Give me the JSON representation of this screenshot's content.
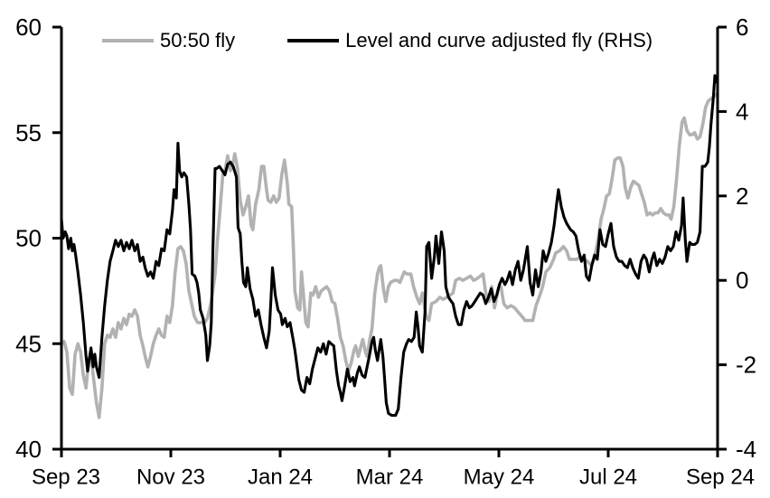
{
  "chart_data": {
    "type": "line",
    "title": "",
    "background_color": "#ffffff",
    "axis_color": "#000000",
    "grid": false,
    "legend_position": "top-inside",
    "x_axis": {
      "unit": "months since Sep 2023",
      "range_months": [
        0,
        12
      ],
      "tick_positions_months": [
        0,
        2,
        4,
        6,
        8,
        10,
        12
      ],
      "tick_labels": [
        "Sep 23",
        "Nov 23",
        "Jan 24",
        "Mar 24",
        "May 24",
        "Jul 24",
        "Sep 24"
      ]
    },
    "y_axis_left": {
      "range": [
        40,
        60
      ],
      "ticks": [
        40,
        45,
        50,
        55,
        60
      ],
      "tick_labels": [
        "40",
        "45",
        "50",
        "55",
        "60"
      ]
    },
    "y_axis_right": {
      "range": [
        -4,
        6
      ],
      "ticks": [
        -4,
        -2,
        0,
        2,
        4,
        6
      ],
      "tick_labels": [
        "-4",
        "-2",
        "0",
        "2",
        "4",
        "6"
      ]
    },
    "series": [
      {
        "name": "50:50 fly",
        "axis": "left",
        "color": "#b2b2b2",
        "stroke_width": 3.6,
        "x": [
          0,
          0.05,
          0.1,
          0.15,
          0.2,
          0.25,
          0.3,
          0.35,
          0.4,
          0.45,
          0.5,
          0.54,
          0.59,
          0.64,
          0.69,
          0.74,
          0.79,
          0.84,
          0.89,
          0.94,
          0.99,
          1.04,
          1.09,
          1.14,
          1.19,
          1.24,
          1.29,
          1.34,
          1.39,
          1.44,
          1.49,
          1.53,
          1.58,
          1.63,
          1.68,
          1.73,
          1.78,
          1.83,
          1.88,
          1.93,
          1.98,
          2.03,
          2.08,
          2.13,
          2.18,
          2.23,
          2.28,
          2.33,
          2.38,
          2.43,
          2.49,
          2.56,
          2.62,
          2.67,
          2.74,
          2.81,
          2.85,
          2.9,
          2.95,
          3.0,
          3.04,
          3.09,
          3.14,
          3.17,
          3.22,
          3.27,
          3.32,
          3.37,
          3.42,
          3.47,
          3.5,
          3.55,
          3.61,
          3.66,
          3.7,
          3.75,
          3.78,
          3.83,
          3.88,
          3.93,
          3.98,
          4.03,
          4.08,
          4.13,
          4.16,
          4.21,
          4.24,
          4.27,
          4.32,
          4.36,
          4.39,
          4.44,
          4.47,
          4.51,
          4.56,
          4.6,
          4.65,
          4.7,
          4.75,
          4.8,
          4.85,
          4.9,
          4.95,
          5.0,
          5.05,
          5.1,
          5.15,
          5.2,
          5.25,
          5.3,
          5.35,
          5.38,
          5.43,
          5.48,
          5.51,
          5.56,
          5.59,
          5.64,
          5.68,
          5.73,
          5.78,
          5.81,
          5.84,
          5.89,
          5.93,
          5.98,
          6.02,
          6.09,
          6.14,
          6.19,
          6.27,
          6.32,
          6.39,
          6.44,
          6.5,
          6.55,
          6.6,
          6.67,
          6.72,
          6.77,
          6.85,
          6.92,
          6.98,
          7.05,
          7.11,
          7.16,
          7.21,
          7.28,
          7.34,
          7.41,
          7.48,
          7.54,
          7.61,
          7.66,
          7.71,
          7.76,
          7.82,
          7.87,
          7.92,
          7.99,
          8.04,
          8.09,
          8.15,
          8.22,
          8.29,
          8.35,
          8.42,
          8.48,
          8.55,
          8.62,
          8.68,
          8.75,
          8.8,
          8.86,
          8.93,
          9.0,
          9.04,
          9.11,
          9.18,
          9.24,
          9.29,
          9.36,
          9.42,
          9.49,
          9.56,
          9.62,
          9.69,
          9.75,
          9.82,
          9.87,
          9.92,
          9.97,
          10.02,
          10.07,
          10.12,
          10.17,
          10.22,
          10.27,
          10.31,
          10.36,
          10.41,
          10.46,
          10.51,
          10.56,
          10.61,
          10.66,
          10.71,
          10.76,
          10.81,
          10.86,
          10.91,
          10.96,
          11.01,
          11.06,
          11.11,
          11.15,
          11.2,
          11.25,
          11.3,
          11.35,
          11.39,
          11.44,
          11.49,
          11.53,
          11.58,
          11.63,
          11.68,
          11.73,
          11.78,
          11.83,
          11.88,
          11.93,
          11.97
        ],
        "y": [
          45.0,
          45.1,
          44.6,
          42.9,
          42.6,
          44.5,
          45.0,
          44.6,
          43.5,
          42.9,
          44.3,
          44.4,
          43.3,
          42.2,
          41.5,
          42.9,
          45.0,
          45.4,
          45.3,
          45.7,
          45.3,
          46.0,
          45.7,
          46.2,
          45.9,
          46.4,
          46.3,
          46.6,
          46.3,
          45.4,
          44.9,
          44.4,
          43.9,
          44.4,
          45.0,
          45.4,
          45.7,
          45.4,
          45.3,
          46.3,
          46.0,
          46.8,
          48.4,
          49.5,
          49.6,
          49.4,
          48.8,
          47.5,
          46.9,
          46.3,
          46.0,
          46.0,
          46.0,
          46.2,
          47.0,
          48.3,
          49.8,
          51.3,
          53.0,
          53.3,
          53.9,
          53.2,
          53.6,
          54.0,
          53.3,
          51.8,
          51.1,
          51.5,
          52.0,
          50.6,
          50.4,
          51.6,
          52.3,
          53.4,
          53.4,
          52.3,
          51.8,
          51.7,
          52.0,
          51.7,
          51.9,
          53.0,
          53.7,
          52.6,
          51.6,
          51.5,
          49.7,
          47.5,
          46.7,
          46.6,
          48.4,
          46.9,
          46.0,
          45.8,
          47.4,
          47.3,
          47.7,
          47.2,
          47.5,
          47.6,
          47.7,
          47.5,
          47.0,
          46.9,
          46.2,
          45.3,
          44.9,
          44.2,
          43.7,
          44.1,
          44.7,
          44.9,
          44.4,
          44.9,
          45.2,
          44.6,
          44.4,
          45.2,
          45.7,
          47.4,
          48.3,
          48.6,
          48.7,
          47.6,
          47.0,
          47.7,
          47.9,
          48.0,
          48.0,
          47.9,
          48.4,
          48.3,
          48.3,
          47.7,
          47.2,
          46.9,
          47.4,
          46.3,
          46.1,
          46.9,
          47.0,
          47.2,
          47.1,
          47.2,
          47.3,
          47.4,
          48.0,
          48.1,
          48.0,
          48.1,
          48.2,
          48.0,
          48.1,
          48.2,
          48.3,
          47.4,
          47.0,
          47.7,
          46.7,
          47.6,
          47.7,
          46.9,
          46.7,
          46.8,
          46.7,
          46.5,
          46.3,
          46.1,
          46.1,
          46.1,
          46.8,
          47.3,
          47.7,
          48.4,
          48.6,
          49.0,
          49.3,
          49.4,
          49.6,
          49.4,
          49.0,
          49.0,
          49.0,
          49.1,
          49.0,
          48.9,
          48.7,
          49.1,
          50.0,
          50.9,
          51.4,
          52.0,
          52.1,
          52.8,
          53.7,
          53.8,
          53.8,
          53.4,
          52.4,
          51.9,
          52.4,
          52.7,
          52.6,
          52.5,
          52.1,
          51.7,
          51.1,
          51.2,
          51.1,
          51.2,
          51.2,
          51.4,
          51.2,
          51.1,
          51.1,
          50.9,
          51.5,
          52.8,
          54.4,
          55.5,
          55.7,
          55.1,
          54.9,
          54.9,
          55.0,
          54.7,
          54.8,
          55.4,
          56.2,
          56.5,
          56.6,
          56.7,
          56.8
        ]
      },
      {
        "name": "Level and curve adjusted fly (RHS)",
        "axis": "right",
        "color": "#000000",
        "stroke_width": 3.1,
        "x": [
          0,
          0.03,
          0.07,
          0.1,
          0.13,
          0.17,
          0.2,
          0.23,
          0.26,
          0.3,
          0.35,
          0.4,
          0.45,
          0.48,
          0.51,
          0.54,
          0.58,
          0.61,
          0.64,
          0.69,
          0.74,
          0.79,
          0.84,
          0.89,
          0.94,
          0.99,
          1.04,
          1.09,
          1.14,
          1.19,
          1.24,
          1.29,
          1.34,
          1.39,
          1.44,
          1.49,
          1.53,
          1.58,
          1.63,
          1.68,
          1.73,
          1.78,
          1.83,
          1.88,
          1.93,
          1.98,
          2.03,
          2.06,
          2.1,
          2.13,
          2.16,
          2.2,
          2.24,
          2.29,
          2.33,
          2.36,
          2.39,
          2.44,
          2.48,
          2.51,
          2.54,
          2.59,
          2.64,
          2.67,
          2.71,
          2.74,
          2.77,
          2.81,
          2.84,
          2.89,
          2.94,
          2.99,
          3.04,
          3.09,
          3.14,
          3.2,
          3.23,
          3.27,
          3.3,
          3.33,
          3.37,
          3.4,
          3.45,
          3.5,
          3.55,
          3.6,
          3.65,
          3.7,
          3.75,
          3.8,
          3.83,
          3.86,
          3.91,
          3.96,
          4.01,
          4.04,
          4.09,
          4.13,
          4.18,
          4.23,
          4.27,
          4.31,
          4.34,
          4.39,
          4.44,
          4.49,
          4.54,
          4.59,
          4.64,
          4.69,
          4.74,
          4.79,
          4.84,
          4.89,
          4.93,
          4.98,
          5.03,
          5.07,
          5.1,
          5.13,
          5.18,
          5.23,
          5.28,
          5.33,
          5.36,
          5.41,
          5.45,
          5.5,
          5.55,
          5.59,
          5.63,
          5.68,
          5.71,
          5.74,
          5.78,
          5.81,
          5.84,
          5.88,
          5.91,
          5.94,
          5.98,
          6.04,
          6.11,
          6.16,
          6.21,
          6.26,
          6.31,
          6.35,
          6.4,
          6.45,
          6.49,
          6.52,
          6.55,
          6.6,
          6.65,
          6.68,
          6.72,
          6.77,
          6.82,
          6.85,
          6.9,
          6.95,
          7.0,
          7.03,
          7.08,
          7.13,
          7.16,
          7.21,
          7.26,
          7.31,
          7.36,
          7.41,
          7.46,
          7.51,
          7.56,
          7.61,
          7.66,
          7.71,
          7.76,
          7.81,
          7.86,
          7.91,
          7.96,
          8.01,
          8.06,
          8.11,
          8.15,
          8.2,
          8.25,
          8.3,
          8.35,
          8.4,
          8.45,
          8.52,
          8.57,
          8.62,
          8.67,
          8.72,
          8.77,
          8.81,
          8.86,
          8.91,
          8.96,
          9.01,
          9.06,
          9.09,
          9.14,
          9.19,
          9.24,
          9.31,
          9.36,
          9.41,
          9.46,
          9.51,
          9.56,
          9.6,
          9.65,
          9.7,
          9.75,
          9.8,
          9.85,
          9.9,
          9.95,
          10.0,
          10.05,
          10.1,
          10.15,
          10.2,
          10.25,
          10.3,
          10.35,
          10.4,
          10.45,
          10.5,
          10.55,
          10.6,
          10.65,
          10.7,
          10.75,
          10.8,
          10.84,
          10.89,
          10.94,
          10.99,
          11.04,
          11.09,
          11.14,
          11.19,
          11.24,
          11.29,
          11.34,
          11.37,
          11.41,
          11.44,
          11.49,
          11.53,
          11.58,
          11.63,
          11.68,
          11.72,
          11.77,
          11.82,
          11.85,
          11.88,
          11.92,
          11.95,
          11.97
        ],
        "y": [
          1.45,
          1.0,
          1.15,
          1.05,
          0.75,
          1.0,
          0.7,
          0.85,
          0.6,
          0.2,
          -0.35,
          -1.0,
          -1.8,
          -2.15,
          -1.85,
          -1.6,
          -2.05,
          -1.75,
          -2.05,
          -2.3,
          -1.35,
          -0.6,
          0.0,
          0.45,
          0.7,
          0.95,
          0.8,
          0.95,
          0.7,
          0.9,
          0.75,
          0.95,
          0.7,
          0.85,
          0.45,
          0.55,
          0.3,
          0.1,
          0.2,
          0.05,
          0.45,
          0.35,
          0.75,
          0.7,
          1.2,
          1.1,
          1.65,
          2.15,
          1.95,
          3.25,
          2.6,
          2.45,
          2.55,
          2.45,
          1.8,
          1.2,
          0.15,
          0.1,
          -0.05,
          -0.3,
          -0.7,
          -0.9,
          -1.3,
          -1.9,
          -1.55,
          -1.0,
          0.75,
          2.65,
          2.65,
          2.7,
          2.6,
          2.5,
          2.75,
          2.8,
          2.7,
          2.45,
          1.25,
          1.1,
          0.45,
          -0.05,
          -0.15,
          0.3,
          -0.2,
          -0.45,
          -0.85,
          -0.7,
          -1.05,
          -1.35,
          -1.6,
          -1.2,
          -0.5,
          0.3,
          -0.35,
          -0.7,
          -0.8,
          -1.05,
          -0.9,
          -1.1,
          -1.0,
          -1.35,
          -1.65,
          -2.05,
          -2.35,
          -2.6,
          -2.65,
          -2.3,
          -2.45,
          -2.1,
          -1.85,
          -1.6,
          -1.7,
          -1.5,
          -1.75,
          -1.45,
          -1.5,
          -1.55,
          -2.15,
          -2.5,
          -2.65,
          -2.85,
          -2.5,
          -2.1,
          -2.4,
          -2.3,
          -2.5,
          -2.2,
          -2.05,
          -2.25,
          -2.3,
          -2.05,
          -1.8,
          -1.45,
          -1.35,
          -1.65,
          -1.9,
          -1.65,
          -1.4,
          -1.8,
          -2.35,
          -2.9,
          -3.15,
          -3.2,
          -3.2,
          -3.05,
          -2.3,
          -1.7,
          -1.5,
          -1.4,
          -1.45,
          -1.35,
          -0.75,
          -1.1,
          -1.55,
          -1.7,
          -0.75,
          0.8,
          0.9,
          0.05,
          0.55,
          1.05,
          0.4,
          1.15,
          0.7,
          -0.15,
          -0.4,
          -0.5,
          -0.55,
          -0.85,
          -1.05,
          -1.05,
          -0.7,
          -0.5,
          -0.65,
          -0.6,
          -0.5,
          -0.4,
          -0.3,
          -0.35,
          -0.55,
          -0.4,
          -0.2,
          -0.5,
          -0.35,
          -0.1,
          0.05,
          -0.1,
          0.0,
          0.2,
          -0.1,
          0.25,
          0.45,
          0.0,
          0.25,
          0.8,
          -0.05,
          -0.35,
          0.25,
          -0.15,
          0.2,
          0.7,
          0.45,
          0.65,
          0.9,
          1.3,
          1.85,
          2.15,
          1.75,
          1.5,
          1.35,
          1.2,
          1.15,
          1.05,
          0.7,
          0.45,
          0.6,
          0.1,
          0.0,
          0.35,
          0.6,
          0.5,
          1.2,
          0.85,
          0.8,
          1.1,
          1.35,
          0.8,
          0.55,
          0.45,
          0.45,
          0.35,
          0.3,
          0.5,
          0.3,
          0.15,
          0.05,
          0.45,
          0.6,
          0.5,
          0.2,
          0.5,
          0.65,
          0.35,
          0.5,
          0.4,
          0.55,
          0.8,
          0.7,
          0.8,
          1.15,
          0.95,
          1.3,
          1.95,
          0.95,
          0.45,
          0.9,
          0.85,
          0.85,
          0.9,
          1.15,
          2.7,
          2.7,
          2.8,
          3.15,
          3.7,
          4.3,
          4.85,
          4.7
        ]
      }
    ]
  },
  "legend": {
    "items": [
      {
        "label": "50:50 fly",
        "color": "#b2b2b2"
      },
      {
        "label": "Level and curve adjusted fly (RHS)",
        "color": "#000000"
      }
    ]
  }
}
